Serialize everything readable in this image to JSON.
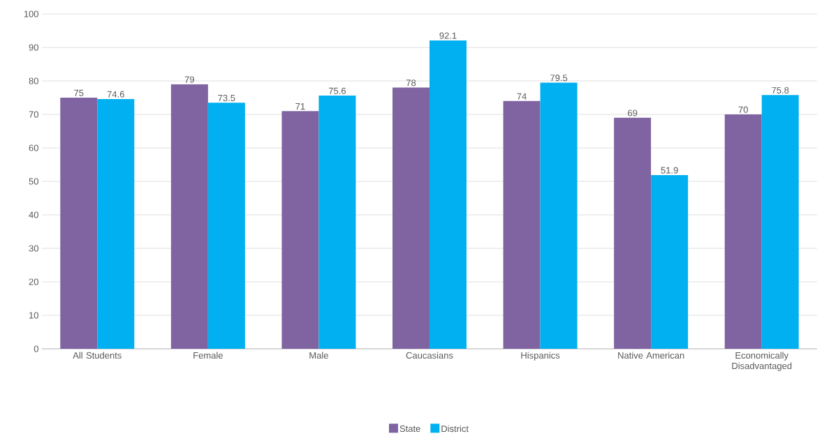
{
  "chart_data": {
    "type": "bar",
    "categories": [
      "All Students",
      "Female",
      "Male",
      "Caucasians",
      "Hispanics",
      "Native American",
      "Economically Disadvantaged"
    ],
    "series": [
      {
        "name": "State",
        "color": "#8064a2",
        "values": [
          75,
          79,
          71,
          78,
          74,
          69,
          70
        ]
      },
      {
        "name": "District",
        "color": "#00b0f0",
        "values": [
          74.6,
          73.5,
          75.6,
          92.1,
          79.5,
          51.9,
          75.8
        ]
      }
    ],
    "ylim": [
      0,
      100
    ],
    "yticks": [
      0,
      10,
      20,
      30,
      40,
      50,
      60,
      70,
      80,
      90,
      100
    ],
    "grid": "y",
    "legend": "bottom",
    "data_labels": true
  }
}
